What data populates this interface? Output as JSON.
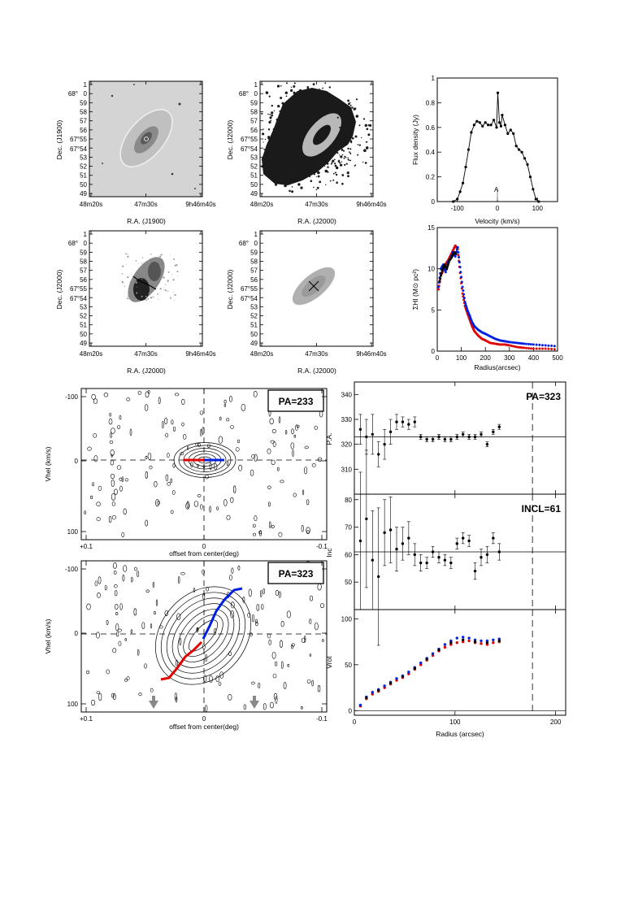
{
  "panels": {
    "sky": {
      "ra_ticks": [
        "48m20s",
        "47m30s",
        "9h46m40s"
      ],
      "dec_ticks": [
        "68°",
        "0",
        "59",
        "58",
        "57",
        "56",
        "55",
        "54",
        "53",
        "52",
        "51",
        "50",
        "49"
      ],
      "dec_ticks_short": [
        "1",
        "0",
        "59",
        "58",
        "57",
        "56",
        "55",
        "54",
        "53",
        "52",
        "51",
        "50",
        "49"
      ],
      "labels": {
        "a": {
          "xlabel": "R.A. (J1900)",
          "ylabel": "Dec. (J1900)",
          "dec_mid": "67°55",
          "dec_mid2": "67°54"
        },
        "b": {
          "xlabel": "R.A. (J2000)",
          "ylabel": "Dec. (J2000)",
          "dec_mid": "67°55",
          "dec_mid2": "67°54"
        },
        "d": {
          "xlabel": "R.A. (J2000)",
          "ylabel": "Dec. (J2000)",
          "dec_mid": "67°55",
          "dec_mid2": "67°54"
        },
        "e": {
          "xlabel": "R.A. (J2000)",
          "ylabel": "Dec. (J2000)",
          "dec_mid": "67°55",
          "dec_mid2": "67°54"
        }
      }
    },
    "spectrum": {
      "xlabel": "Velocity (km/s)",
      "ylabel": "Flux density (Jy)",
      "marker": "A"
    },
    "density": {
      "xlabel": "Radius(arcsec)",
      "ylabel": "ΣHI (M⊙ pc²)"
    },
    "pv1": {
      "label": "PA=233",
      "xlabel": "offset from center(deg)",
      "ylabel": "Vhel (km/s)"
    },
    "pv2": {
      "label": "PA=323",
      "xlabel": "offset from center(deg)",
      "ylabel": "Vhel (km/s)"
    },
    "pa": {
      "label": "PA=323",
      "ylabel": "P.A."
    },
    "incl": {
      "label": "INCL=61",
      "ylabel": "Inc"
    },
    "vrot": {
      "xlabel": "Radius (arcsec)",
      "ylabel": "Vrot"
    }
  },
  "chart_data": [
    {
      "type": "line",
      "id": "spectrum",
      "xlabel": "Velocity (km/s)",
      "ylabel": "Flux density (Jy)",
      "xlim": [
        -150,
        150
      ],
      "ylim": [
        0,
        1
      ],
      "x_ticks": [
        -100,
        0,
        100
      ],
      "y_ticks": [
        0,
        0.2,
        0.4,
        0.6,
        0.8,
        1
      ],
      "series": [
        {
          "x": [
            -110,
            -100,
            -93,
            -86,
            -79,
            -72,
            -65,
            -58,
            -51,
            -44,
            -37,
            -30,
            -23,
            -16,
            -9,
            -2,
            1,
            5,
            9,
            12,
            19,
            26,
            33,
            40,
            47,
            54,
            61,
            68,
            75,
            82,
            89,
            96,
            103
          ],
          "y": [
            0,
            0.02,
            0.08,
            0.15,
            0.28,
            0.42,
            0.56,
            0.62,
            0.65,
            0.64,
            0.61,
            0.64,
            0.62,
            0.62,
            0.66,
            0.6,
            0.88,
            0.64,
            0.61,
            0.7,
            0.62,
            0.55,
            0.58,
            0.55,
            0.45,
            0.42,
            0.4,
            0.35,
            0.3,
            0.2,
            0.1,
            0.02,
            0
          ]
        }
      ]
    },
    {
      "type": "scatter",
      "id": "density",
      "xlabel": "Radius(arcsec)",
      "ylabel": "ΣHI (M⊙ pc²)",
      "xlim": [
        0,
        500
      ],
      "ylim": [
        0,
        15
      ],
      "x_ticks": [
        0,
        100,
        200,
        300,
        400,
        500
      ],
      "y_ticks": [
        0,
        5,
        10,
        15
      ],
      "series": [
        {
          "color": "#e00000",
          "x": [
            5,
            15,
            25,
            35,
            45,
            55,
            65,
            75,
            85,
            95,
            105,
            115,
            125,
            135,
            145,
            155,
            170,
            185,
            200,
            220,
            240,
            260,
            280,
            300,
            330,
            360,
            400,
            450,
            500
          ],
          "y": [
            7.5,
            9.2,
            9.8,
            10.6,
            11.0,
            11.6,
            12.2,
            12.8,
            12.4,
            9.5,
            7.0,
            5.5,
            4.6,
            3.8,
            3.0,
            2.4,
            1.9,
            1.5,
            1.3,
            1.0,
            0.9,
            0.8,
            0.8,
            0.7,
            0.5,
            0.4,
            0.3,
            0.3,
            0.2
          ]
        },
        {
          "color": "#0020e0",
          "x": [
            5,
            15,
            25,
            35,
            45,
            55,
            65,
            75,
            85,
            95,
            105,
            115,
            125,
            135,
            145,
            155,
            170,
            185,
            200,
            220,
            240,
            260,
            280,
            300,
            330,
            360,
            400,
            450,
            500
          ],
          "y": [
            7.8,
            10.0,
            10.5,
            9.6,
            10.8,
            11.2,
            12.0,
            11.5,
            12.6,
            10.2,
            7.8,
            6.0,
            5.0,
            4.3,
            3.5,
            3.0,
            2.6,
            2.3,
            2.1,
            1.8,
            1.5,
            1.3,
            1.2,
            1.1,
            1.0,
            0.9,
            0.8,
            0.7,
            0.6
          ]
        },
        {
          "color": "#000000",
          "x": [
            10,
            20,
            30,
            40,
            50,
            60,
            70,
            80
          ],
          "y": [
            8.5,
            9.8,
            10.5,
            10.0,
            11.0,
            11.4,
            12.0,
            11.8
          ]
        }
      ]
    },
    {
      "type": "scatter",
      "id": "pa",
      "ylabel": "P.A.",
      "xlim": [
        0,
        210
      ],
      "ylim": [
        300,
        345
      ],
      "y_ticks": [
        310,
        320,
        330,
        340
      ],
      "hline": 323,
      "vline": 177,
      "series": [
        {
          "x": [
            6,
            12,
            18,
            24,
            30,
            36,
            42,
            48,
            54,
            60,
            66,
            72,
            78,
            84,
            90,
            96,
            102,
            108,
            114,
            120,
            126,
            132,
            138,
            144
          ],
          "y": [
            326,
            323,
            324,
            316,
            320,
            325,
            329,
            329,
            328,
            329,
            323,
            322,
            322,
            323,
            322,
            322,
            323,
            324,
            323,
            323,
            324,
            320,
            325,
            327
          ],
          "err": [
            6,
            7,
            8,
            5,
            6,
            5,
            3,
            2,
            2,
            2,
            1,
            1,
            1,
            1,
            1,
            1,
            1,
            1,
            1,
            1,
            1,
            1,
            1,
            1
          ]
        }
      ]
    },
    {
      "type": "scatter",
      "id": "incl",
      "ylabel": "Inc",
      "xlim": [
        0,
        210
      ],
      "ylim": [
        40,
        82
      ],
      "y_ticks": [
        50,
        60,
        70,
        80
      ],
      "hline": 61,
      "vline": 177,
      "series": [
        {
          "x": [
            6,
            12,
            18,
            24,
            30,
            36,
            42,
            48,
            54,
            60,
            66,
            72,
            78,
            84,
            90,
            96,
            102,
            108,
            114,
            120,
            126,
            132,
            138,
            144
          ],
          "y": [
            65,
            73,
            58,
            52,
            68,
            69,
            62,
            64,
            66,
            60,
            57,
            57,
            61,
            59,
            58,
            57,
            64,
            66,
            65,
            54,
            59,
            60,
            66,
            61
          ],
          "err": [
            25,
            25,
            18,
            25,
            12,
            12,
            8,
            6,
            6,
            4,
            3,
            2,
            2,
            2,
            2,
            2,
            2,
            2,
            2,
            3,
            3,
            3,
            2,
            3
          ]
        }
      ]
    },
    {
      "type": "scatter",
      "id": "vrot",
      "xlabel": "Radius (arcsec)",
      "ylabel": "Vrot",
      "xlim": [
        0,
        210
      ],
      "ylim": [
        -5,
        110
      ],
      "x_ticks": [
        0,
        100,
        200
      ],
      "y_ticks": [
        0,
        50,
        100
      ],
      "vline": 177,
      "series": [
        {
          "color": "#e00000",
          "x": [
            6,
            12,
            18,
            24,
            30,
            36,
            42,
            48,
            54,
            60,
            66,
            72,
            78,
            84,
            90,
            96,
            102,
            108,
            114,
            120,
            126,
            132,
            138,
            144
          ],
          "y": [
            5,
            13,
            18,
            21,
            25,
            29,
            33,
            36,
            40,
            45,
            50,
            55,
            60,
            65,
            69,
            72,
            74,
            75,
            76,
            74,
            73,
            72,
            74,
            75
          ]
        },
        {
          "color": "#0020e0",
          "x": [
            6,
            12,
            18,
            24,
            30,
            36,
            42,
            48,
            54,
            60,
            66,
            72,
            78,
            84,
            90,
            96,
            102,
            108,
            114,
            120,
            126,
            132,
            138,
            144
          ],
          "y": [
            6,
            15,
            20,
            23,
            27,
            31,
            35,
            38,
            42,
            47,
            52,
            57,
            62,
            67,
            72,
            76,
            79,
            80,
            79,
            77,
            76,
            76,
            77,
            78
          ]
        },
        {
          "color": "#000000",
          "x": [
            12,
            24,
            36,
            48,
            60,
            72,
            84,
            96,
            108,
            120,
            132,
            144
          ],
          "y": [
            14,
            22,
            30,
            37,
            46,
            56,
            66,
            74,
            77,
            75,
            74,
            76
          ]
        }
      ]
    }
  ],
  "pv_ticks": {
    "x": [
      "+0.1",
      "0",
      "-0.1"
    ],
    "y": [
      "-100",
      "0",
      "100"
    ]
  }
}
